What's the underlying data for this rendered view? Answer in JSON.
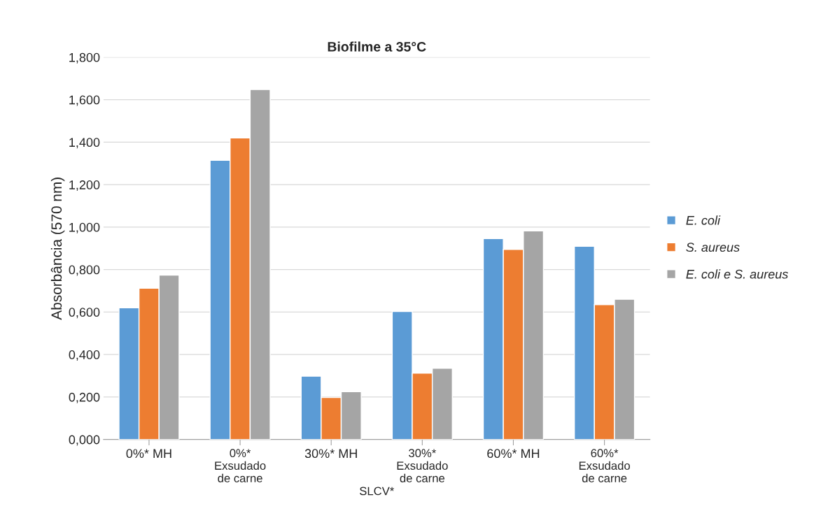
{
  "chart_data": {
    "type": "bar",
    "title": "Biofilme a 35°C",
    "xlabel": "SLCV*",
    "ylabel": "Absorbância (570 nm)",
    "categories": [
      "0%* MH",
      "0%*\nExsudado\nde carne",
      "30%* MH",
      "30%*\nExsudado\nde carne",
      "60%* MH",
      "60%*\nExsudado\nde carne"
    ],
    "series": [
      {
        "name": "E. coli",
        "color": "#5b9bd5",
        "values": [
          0.62,
          1.315,
          0.298,
          0.603,
          0.946,
          0.91
        ]
      },
      {
        "name": "S. aureus",
        "color": "#ed7d31",
        "values": [
          0.712,
          1.42,
          0.198,
          0.312,
          0.895,
          0.635
        ]
      },
      {
        "name": "E. coli e S. aureus",
        "color": "#a5a5a5",
        "values": [
          0.774,
          1.648,
          0.225,
          0.335,
          0.982,
          0.66
        ]
      }
    ],
    "ylim": [
      0,
      1.8
    ],
    "yticks": [
      {
        "value": 0,
        "label": "0,000"
      },
      {
        "value": 0.2,
        "label": "0,200"
      },
      {
        "value": 0.4,
        "label": "0,400"
      },
      {
        "value": 0.6,
        "label": "0,600"
      },
      {
        "value": 0.8,
        "label": "0,800"
      },
      {
        "value": 1.0,
        "label": "1,000"
      },
      {
        "value": 1.2,
        "label": "1,200"
      },
      {
        "value": 1.4,
        "label": "1,400"
      },
      {
        "value": 1.6,
        "label": "1,600"
      },
      {
        "value": 1.8,
        "label": "1,800"
      }
    ],
    "grid": "y",
    "legend": "right"
  }
}
